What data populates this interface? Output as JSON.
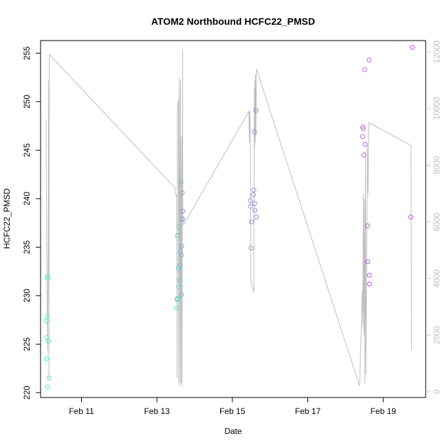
{
  "chart_data": {
    "type": "scatter",
    "title": "ATOM2 Northbound HCFC22_PMSD",
    "xlabel": "Date",
    "ylabel": "HCFC22_PMSD",
    "x_ticks": [
      "Feb 11",
      "Feb 13",
      "Feb 15",
      "Feb 17",
      "Feb 19"
    ],
    "y_ticks": [
      "220",
      "225",
      "230",
      "235",
      "240",
      "245",
      "250",
      "255"
    ],
    "y2_ticks": [
      "0",
      "2000",
      "4000",
      "6000",
      "8000",
      "10000",
      "12000"
    ],
    "xlim": [
      "2016-02-09 22:00",
      "2016-02-20 03:00"
    ],
    "ylim": [
      219.5,
      256.3
    ],
    "y2lim": [
      -200,
      12400
    ],
    "grid": false,
    "legend": "none",
    "point_colors": {
      "start": "#40ffb0",
      "end": "#d040ff"
    },
    "series": [
      {
        "kind": "points",
        "points": [
          [
            "2016-02-10 01:30",
            227.4
          ],
          [
            "2016-02-10 01:40",
            223.5
          ],
          [
            "2016-02-10 02:00",
            225.7
          ],
          [
            "2016-02-10 02:10",
            227.8
          ],
          [
            "2016-02-10 02:20",
            232.0
          ],
          [
            "2016-02-10 02:40",
            231.8
          ],
          [
            "2016-02-10 02:30",
            220.6
          ],
          [
            "2016-02-10 03:00",
            225.3
          ],
          [
            "2016-02-10 03:20",
            221.5
          ],
          [
            "2016-02-13 12:20",
            228.7
          ],
          [
            "2016-02-13 12:50",
            229.6
          ],
          [
            "2016-02-13 13:00",
            229.7
          ],
          [
            "2016-02-13 13:10",
            236.2
          ],
          [
            "2016-02-13 13:40",
            232.8
          ],
          [
            "2016-02-13 13:50",
            230.9
          ],
          [
            "2016-02-13 14:10",
            237.1
          ],
          [
            "2016-02-13 14:20",
            231.6
          ],
          [
            "2016-02-13 14:40",
            233.1
          ],
          [
            "2016-02-13 15:00",
            234.6
          ],
          [
            "2016-02-13 15:20",
            241.7
          ],
          [
            "2016-02-13 15:30",
            230.1
          ],
          [
            "2016-02-13 15:40",
            234.2
          ],
          [
            "2016-02-13 15:50",
            235.1
          ],
          [
            "2016-02-13 16:10",
            240.6
          ],
          [
            "2016-02-13 16:20",
            237.9
          ],
          [
            "2016-02-13 16:30",
            238.7
          ],
          [
            "2016-02-15 11:30",
            239.8
          ],
          [
            "2016-02-15 11:40",
            239.2
          ],
          [
            "2016-02-15 12:00",
            234.9
          ],
          [
            "2016-02-15 12:10",
            237.6
          ],
          [
            "2016-02-15 13:20",
            240.4
          ],
          [
            "2016-02-15 13:40",
            240.9
          ],
          [
            "2016-02-15 14:00",
            246.9
          ],
          [
            "2016-02-15 14:10",
            239.5
          ],
          [
            "2016-02-15 14:20",
            238.8
          ],
          [
            "2016-02-15 15:00",
            249.1
          ],
          [
            "2016-02-15 15:10",
            238.1
          ],
          [
            "2016-02-18 10:50",
            246.4
          ],
          [
            "2016-02-18 11:00",
            247.4
          ],
          [
            "2016-02-18 11:20",
            247.2
          ],
          [
            "2016-02-18 11:40",
            244.5
          ],
          [
            "2016-02-18 12:10",
            253.3
          ],
          [
            "2016-02-18 12:30",
            245.6
          ],
          [
            "2016-02-18 14:00",
            237.2
          ],
          [
            "2016-02-18 14:10",
            233.5
          ],
          [
            "2016-02-18 15:00",
            254.3
          ],
          [
            "2016-02-18 15:10",
            232.1
          ],
          [
            "2016-02-18 15:20",
            231.2
          ],
          [
            "2016-02-19 17:30",
            238.1
          ],
          [
            "2016-02-19 18:30",
            255.6
          ]
        ]
      },
      {
        "kind": "line",
        "axis": "right",
        "color": "#bebebe",
        "points": [
          [
            "2016-02-10 01:30",
            9600
          ],
          [
            "2016-02-10 01:50",
            5500
          ],
          [
            "2016-02-10 02:10",
            3200
          ],
          [
            "2016-02-10 02:30",
            1400
          ],
          [
            "2016-02-10 02:50",
            4600
          ],
          [
            "2016-02-10 03:10",
            11000
          ],
          [
            "2016-02-10 03:20",
            400
          ],
          [
            "2016-02-10 03:30",
            11500
          ],
          [
            "2016-02-10 03:40",
            11900
          ],
          [
            "2016-02-13 11:30",
            7200
          ],
          [
            "2016-02-13 11:40",
            7000
          ],
          [
            "2016-02-13 12:40",
            6900
          ],
          [
            "2016-02-13 12:50",
            500
          ],
          [
            "2016-02-13 13:00",
            9800
          ],
          [
            "2016-02-13 13:20",
            10200
          ],
          [
            "2016-02-13 13:40",
            10300
          ],
          [
            "2016-02-13 13:50",
            300
          ],
          [
            "2016-02-13 14:20",
            11100
          ],
          [
            "2016-02-13 14:40",
            200
          ],
          [
            "2016-02-13 15:00",
            11000
          ],
          [
            "2016-02-13 15:20",
            300
          ],
          [
            "2016-02-13 15:40",
            9000
          ],
          [
            "2016-02-13 16:00",
            200
          ],
          [
            "2016-02-13 16:20",
            12100
          ],
          [
            "2016-02-13 16:30",
            6000
          ],
          [
            "2016-02-13 16:40",
            6200
          ],
          [
            "2016-02-13 17:00",
            5900
          ],
          [
            "2016-02-15 10:30",
            9900
          ],
          [
            "2016-02-15 10:50",
            8800
          ],
          [
            "2016-02-15 11:00",
            9900
          ],
          [
            "2016-02-15 11:10",
            9900
          ],
          [
            "2016-02-15 11:30",
            8800
          ],
          [
            "2016-02-15 11:50",
            3900
          ],
          [
            "2016-02-15 13:40",
            3500
          ],
          [
            "2016-02-15 14:00",
            10700
          ],
          [
            "2016-02-15 14:10",
            8600
          ],
          [
            "2016-02-15 14:20",
            11000
          ],
          [
            "2016-02-15 14:30",
            8800
          ],
          [
            "2016-02-15 14:40",
            11200
          ],
          [
            "2016-02-15 15:00",
            9000
          ],
          [
            "2016-02-15 15:20",
            11400
          ],
          [
            "2016-02-18 09:00",
            200
          ],
          [
            "2016-02-18 10:40",
            3600
          ],
          [
            "2016-02-18 11:00",
            2300
          ],
          [
            "2016-02-18 11:20",
            7000
          ],
          [
            "2016-02-18 11:40",
            2000
          ],
          [
            "2016-02-18 12:00",
            6800
          ],
          [
            "2016-02-18 12:20",
            300
          ],
          [
            "2016-02-18 12:40",
            8500
          ],
          [
            "2016-02-18 13:00",
            600
          ],
          [
            "2016-02-18 14:00",
            8700
          ],
          [
            "2016-02-18 14:20",
            7000
          ],
          [
            "2016-02-18 14:40",
            9000
          ],
          [
            "2016-02-18 15:00",
            9500
          ],
          [
            "2016-02-19 17:40",
            8700
          ],
          [
            "2016-02-19 18:00",
            1500
          ]
        ]
      }
    ]
  }
}
